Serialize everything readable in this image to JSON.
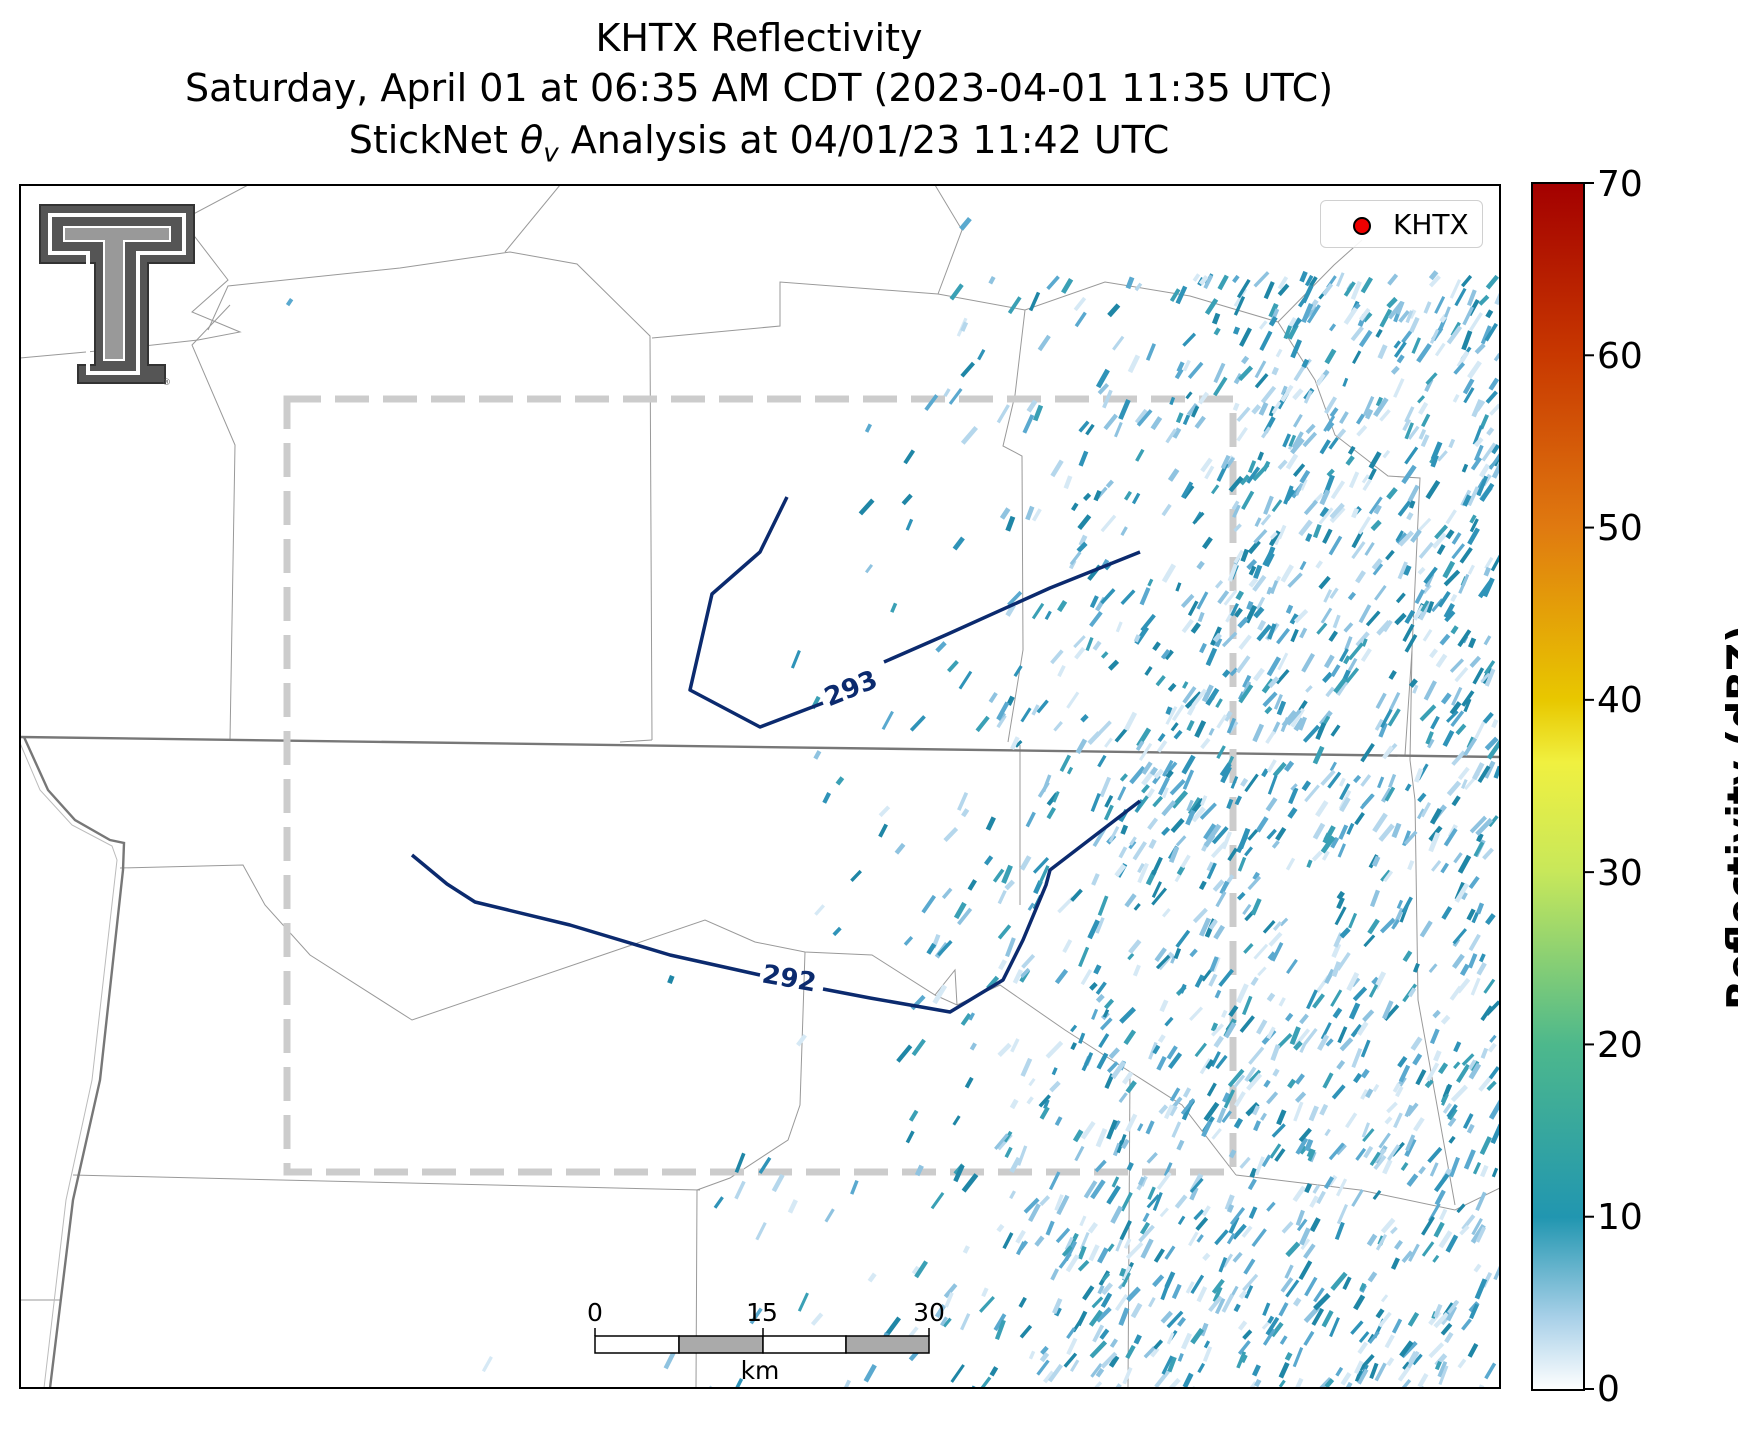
{
  "title": {
    "line1": "KHTX Reflectivity",
    "line2": "Saturday, April 01 at 06:35 AM CDT (2023-04-01 11:35 UTC)",
    "line3_prefix": "StickNet ",
    "line3_theta": "θ",
    "line3_sub": "v",
    "line3_suffix": " Analysis at 04/01/23 11:42 UTC"
  },
  "legend": {
    "label": "KHTX",
    "marker_color": "#ee0000"
  },
  "contours": [
    {
      "label": "293"
    },
    {
      "label": "292"
    }
  ],
  "contour_color": "#0b2a6e",
  "scale_bar": {
    "ticks": [
      "0",
      "15",
      "30"
    ],
    "unit": "km"
  },
  "colorbar": {
    "label": "Reflectivity (dBZ)",
    "min": 0,
    "max": 70,
    "ticks": [
      "0",
      "10",
      "20",
      "30",
      "40",
      "50",
      "60",
      "70"
    ],
    "colors": [
      "#ffffff",
      "#2196b0",
      "#4db88c",
      "#c8e85a",
      "#e8c800",
      "#e07a10",
      "#c83800",
      "#a30000"
    ]
  },
  "analysis_domain_color": "#cccccc",
  "logo": {
    "name": "Texas Tech double-T logo"
  }
}
